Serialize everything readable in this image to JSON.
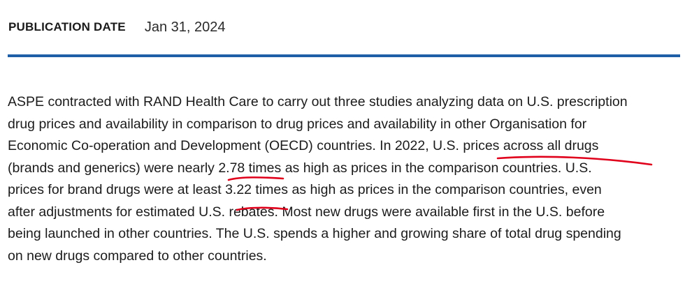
{
  "publication": {
    "label": "PUBLICATION DATE",
    "date": "Jan 31, 2024"
  },
  "colors": {
    "divider": "#1f5fa8",
    "annotation": "#e0001b"
  },
  "summary": {
    "lines": [
      "ASPE contracted with RAND Health Care to carry out three studies analyzing data on U.S. prescription",
      "drug prices and availability in comparison to drug prices and availability in other Organisation for",
      "Economic Co-operation and Development (OECD) countries. In 2022, U.S. prices across all drugs",
      "(brands and generics) were nearly 2.78 times as high as prices in the comparison countries. U.S.",
      "prices for brand drugs were at least 3.22 times as high as prices in the comparison countries, even",
      "after adjustments for estimated U.S. rebates. Most new drugs were available first in the U.S. before",
      "being launched in other countries. The U.S. spends a higher and growing share of total drug spending",
      "on new drugs compared to other countries."
    ]
  }
}
